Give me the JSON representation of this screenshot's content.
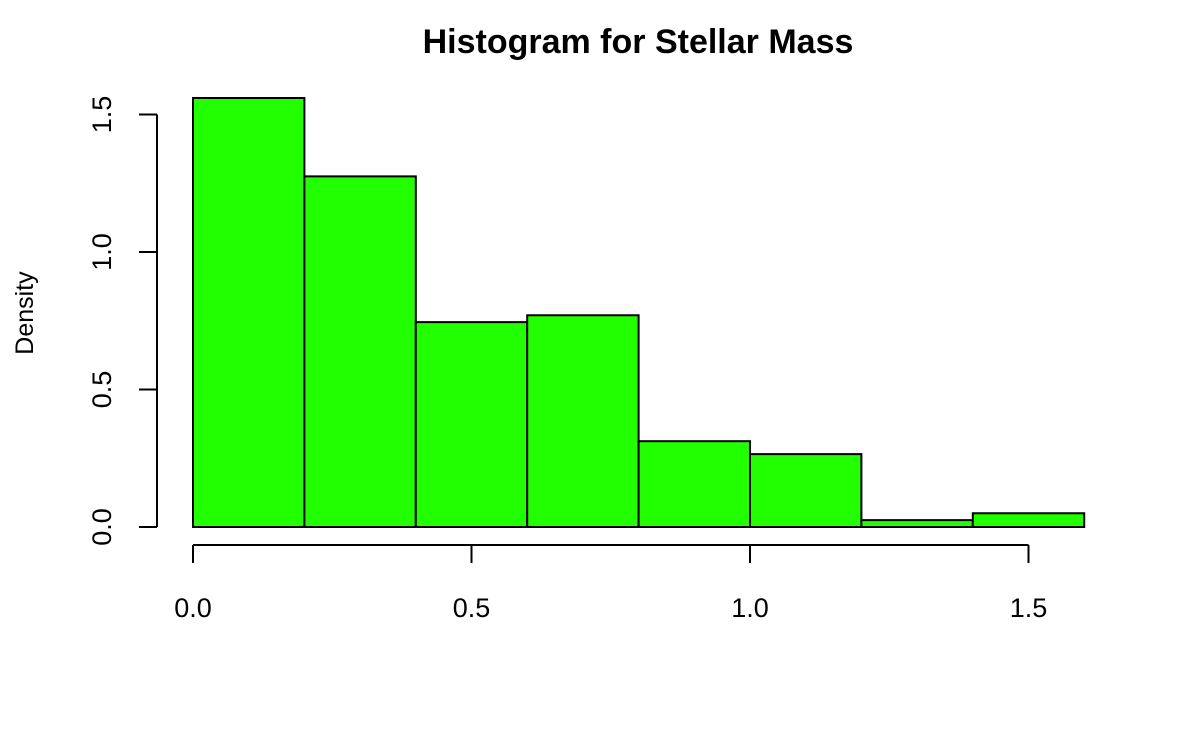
{
  "chart_data": {
    "type": "bar",
    "title": "Histogram for Stellar Mass",
    "xlabel": "",
    "ylabel": "Density",
    "bins": [
      {
        "x0": 0.0,
        "x1": 0.2,
        "value": 1.56
      },
      {
        "x0": 0.2,
        "x1": 0.4,
        "value": 1.275
      },
      {
        "x0": 0.4,
        "x1": 0.6,
        "value": 0.745
      },
      {
        "x0": 0.6,
        "x1": 0.8,
        "value": 0.77
      },
      {
        "x0": 0.8,
        "x1": 1.0,
        "value": 0.312
      },
      {
        "x0": 1.0,
        "x1": 1.2,
        "value": 0.265
      },
      {
        "x0": 1.2,
        "x1": 1.4,
        "value": 0.025
      },
      {
        "x0": 1.4,
        "x1": 1.6,
        "value": 0.05
      }
    ],
    "x_ticks": [
      "0.0",
      "0.5",
      "1.0",
      "1.5"
    ],
    "y_ticks": [
      "0.0",
      "0.5",
      "1.0",
      "1.5"
    ],
    "xlim": [
      0,
      1.6
    ],
    "ylim": [
      0,
      1.56
    ],
    "bar_color": "#22ff00",
    "grid": false
  }
}
